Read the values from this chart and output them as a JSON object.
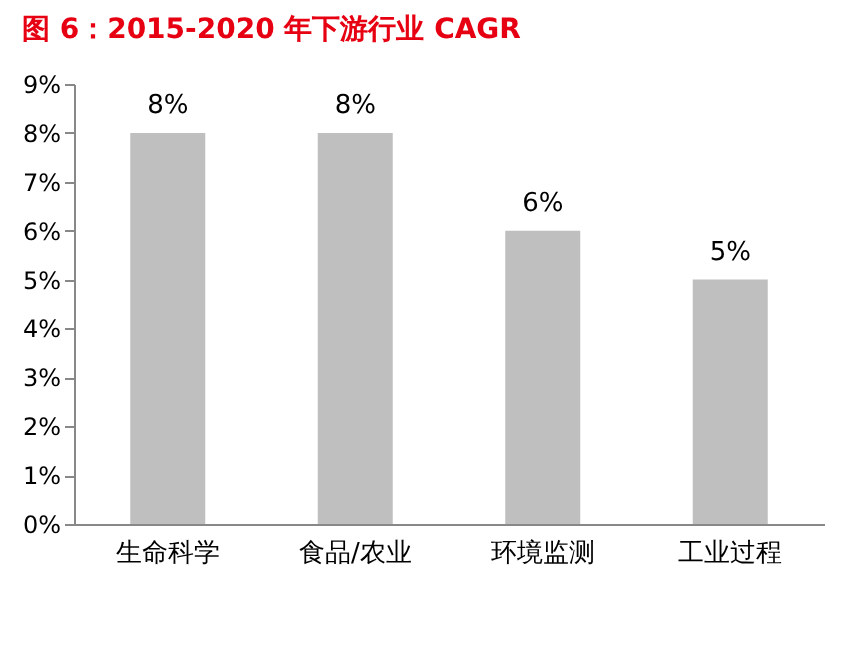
{
  "chart_data": {
    "type": "bar",
    "title": "图 6：2015-2020 年下游行业 CAGR",
    "categories": [
      "生命科学",
      "食品/农业",
      "环境监测",
      "工业过程"
    ],
    "values": [
      8,
      8,
      6,
      5
    ],
    "color": "#bfbfbf",
    "value_labels": [
      "8%",
      "8%",
      "6%",
      "5%"
    ],
    "ylim": [
      0,
      9
    ],
    "yticks": [
      {
        "value": 0,
        "label": "0%"
      },
      {
        "value": 1,
        "label": "1%"
      },
      {
        "value": 2,
        "label": "2%"
      },
      {
        "value": 3,
        "label": "3%"
      },
      {
        "value": 4,
        "label": "4%"
      },
      {
        "value": 5,
        "label": "5%"
      },
      {
        "value": 6,
        "label": "6%"
      },
      {
        "value": 7,
        "label": "7%"
      },
      {
        "value": 8,
        "label": "8%"
      },
      {
        "value": 9,
        "label": "9%"
      }
    ],
    "grid": false
  }
}
